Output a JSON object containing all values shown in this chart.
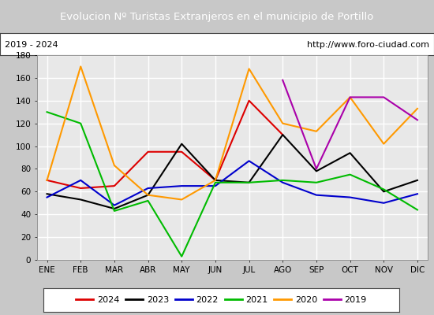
{
  "title": "Evolucion Nº Turistas Extranjeros en el municipio de Portillo",
  "subtitle_left": "2019 - 2024",
  "subtitle_right": "http://www.foro-ciudad.com",
  "xlabel_months": [
    "ENE",
    "FEB",
    "MAR",
    "ABR",
    "MAY",
    "JUN",
    "JUL",
    "AGO",
    "SEP",
    "OCT",
    "NOV",
    "DIC"
  ],
  "ylim": [
    0,
    180
  ],
  "yticks": [
    0,
    20,
    40,
    60,
    80,
    100,
    120,
    140,
    160,
    180
  ],
  "series": {
    "2024": {
      "color": "#dd0000",
      "data": [
        70,
        63,
        65,
        95,
        95,
        70,
        140,
        110,
        null,
        null,
        null,
        null
      ]
    },
    "2023": {
      "color": "#000000",
      "data": [
        58,
        53,
        45,
        57,
        102,
        70,
        68,
        110,
        78,
        94,
        60,
        70
      ]
    },
    "2022": {
      "color": "#0000cc",
      "data": [
        55,
        70,
        48,
        63,
        65,
        65,
        87,
        68,
        57,
        55,
        50,
        58
      ]
    },
    "2021": {
      "color": "#00bb00",
      "data": [
        130,
        120,
        43,
        52,
        3,
        68,
        68,
        70,
        68,
        75,
        62,
        44
      ]
    },
    "2020": {
      "color": "#ff9900",
      "data": [
        70,
        170,
        83,
        57,
        53,
        70,
        168,
        120,
        113,
        143,
        102,
        133
      ]
    },
    "2019": {
      "color": "#aa00aa",
      "data": [
        null,
        null,
        null,
        null,
        null,
        null,
        null,
        158,
        80,
        143,
        143,
        123
      ]
    }
  },
  "title_bg_color": "#4472c4",
  "title_text_color": "#ffffff",
  "plot_bg_color": "#e8e8e8",
  "grid_color": "#ffffff",
  "fig_bg_color": "#c8c8c8",
  "legend_order": [
    "2024",
    "2023",
    "2022",
    "2021",
    "2020",
    "2019"
  ]
}
